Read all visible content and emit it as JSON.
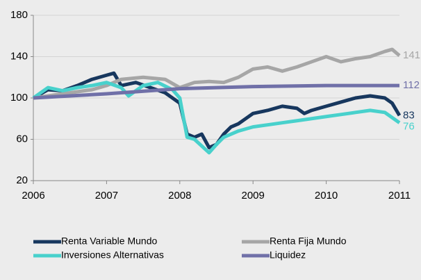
{
  "chart_data": {
    "type": "line",
    "xlim": [
      2006,
      2011
    ],
    "xticks": [
      2006,
      2007,
      2008,
      2009,
      2010,
      2011
    ],
    "ylim": [
      20,
      180
    ],
    "yticks": [
      20,
      60,
      100,
      140,
      180
    ],
    "grid": true,
    "legend": "bottom",
    "series": [
      {
        "name": "Renta Variable Mundo",
        "color": "#17375e",
        "x": [
          2006,
          2006.2,
          2006.4,
          2006.6,
          2006.8,
          2007,
          2007.1,
          2007.2,
          2007.4,
          2007.6,
          2007.8,
          2008,
          2008.1,
          2008.2,
          2008.3,
          2008.4,
          2008.5,
          2008.6,
          2008.7,
          2008.8,
          2008.9,
          2009,
          2009.2,
          2009.4,
          2009.6,
          2009.7,
          2009.8,
          2010,
          2010.2,
          2010.4,
          2010.6,
          2010.8,
          2010.9,
          2011
        ],
        "values": [
          100,
          108,
          107,
          112,
          118,
          122,
          124,
          112,
          115,
          110,
          105,
          95,
          65,
          62,
          65,
          52,
          55,
          65,
          72,
          75,
          80,
          85,
          88,
          92,
          90,
          85,
          88,
          92,
          96,
          100,
          102,
          100,
          95,
          83
        ]
      },
      {
        "name": "Renta Fija Mundo",
        "color": "#a6a6a6",
        "x": [
          2006,
          2006.4,
          2006.8,
          2007,
          2007.2,
          2007.5,
          2007.8,
          2008,
          2008.2,
          2008.4,
          2008.6,
          2008.8,
          2009,
          2009.2,
          2009.4,
          2009.6,
          2009.8,
          2010,
          2010.2,
          2010.4,
          2010.6,
          2010.8,
          2010.9,
          2011
        ],
        "values": [
          100,
          104,
          108,
          112,
          118,
          120,
          118,
          110,
          115,
          116,
          115,
          120,
          128,
          130,
          126,
          130,
          135,
          140,
          135,
          138,
          140,
          145,
          147,
          141
        ]
      },
      {
        "name": "Inversiones Alternativas",
        "color": "#48d1cc",
        "x": [
          2006,
          2006.2,
          2006.4,
          2006.6,
          2006.8,
          2007,
          2007.2,
          2007.3,
          2007.5,
          2007.7,
          2007.9,
          2008,
          2008.1,
          2008.2,
          2008.4,
          2008.5,
          2008.6,
          2008.8,
          2009,
          2009.2,
          2009.4,
          2009.6,
          2009.8,
          2010,
          2010.2,
          2010.4,
          2010.6,
          2010.8,
          2011
        ],
        "values": [
          100,
          110,
          107,
          110,
          112,
          115,
          110,
          102,
          112,
          115,
          108,
          100,
          62,
          60,
          47,
          55,
          62,
          68,
          72,
          74,
          76,
          78,
          80,
          82,
          84,
          86,
          88,
          86,
          76
        ]
      },
      {
        "name": "Liquidez",
        "color": "#7070a8",
        "x": [
          2006,
          2007,
          2008,
          2009,
          2010,
          2011
        ],
        "values": [
          100,
          104,
          109,
          111,
          112,
          112
        ]
      }
    ]
  }
}
